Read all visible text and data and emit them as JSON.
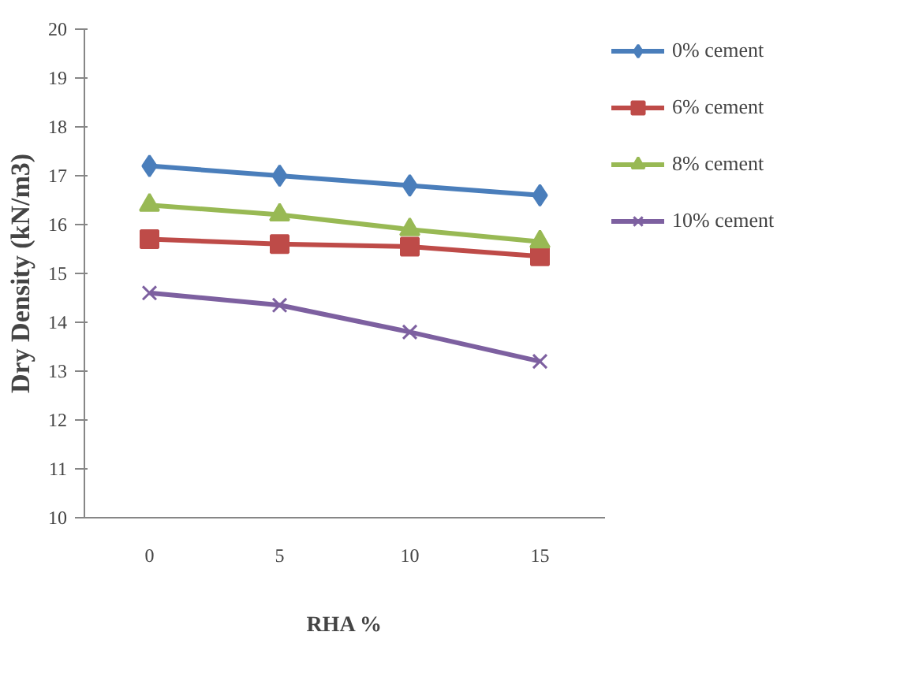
{
  "chart_data": {
    "type": "line",
    "xlabel": "RHA %",
    "ylabel": "Dry Density (kN/m3)",
    "categories": [
      "0",
      "5",
      "10",
      "15"
    ],
    "ylim": [
      10,
      20
    ],
    "yticks": [
      10,
      11,
      12,
      13,
      14,
      15,
      16,
      17,
      18,
      19,
      20
    ],
    "grid": false,
    "legend": "right",
    "line_style": "solid",
    "series": [
      {
        "name": "0% cement",
        "color": "#4a7ebb",
        "marker": "diamond",
        "values": [
          17.2,
          17.0,
          16.8,
          16.6
        ]
      },
      {
        "name": "6% cement",
        "color": "#be4b48",
        "marker": "square",
        "values": [
          15.7,
          15.6,
          15.55,
          15.35
        ]
      },
      {
        "name": "8% cement",
        "color": "#98b954",
        "marker": "triangle",
        "values": [
          16.4,
          16.2,
          15.9,
          15.65
        ]
      },
      {
        "name": "10% cement",
        "color": "#7d60a0",
        "marker": "x",
        "values": [
          14.6,
          14.35,
          13.8,
          13.2
        ]
      }
    ]
  }
}
